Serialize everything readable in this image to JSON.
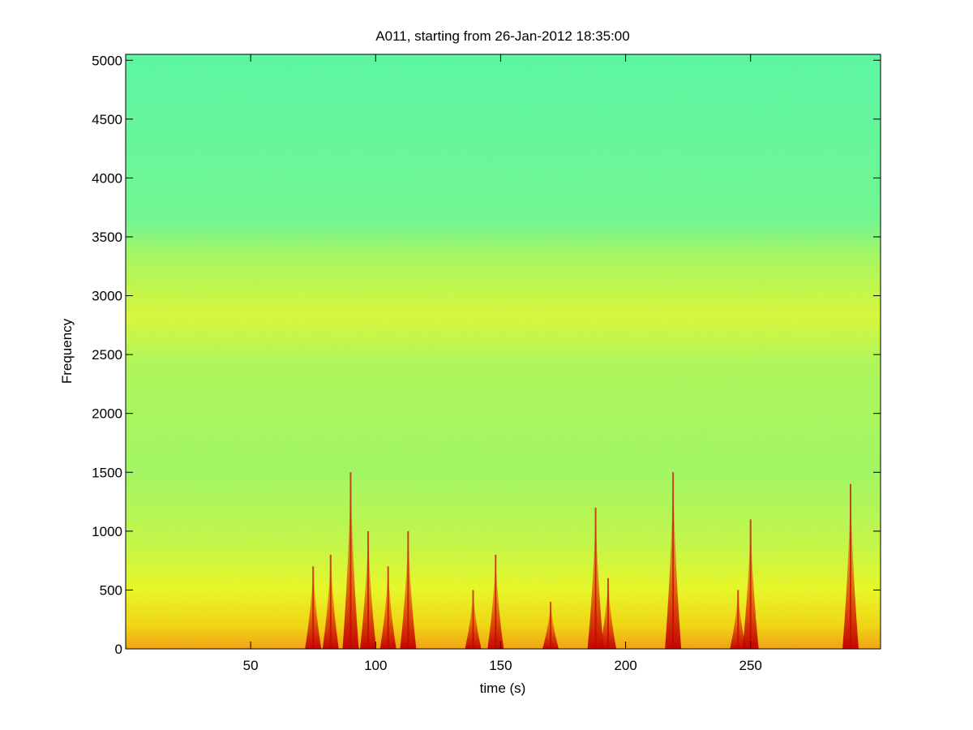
{
  "chart_data": {
    "type": "spectrogram",
    "title": "A011, starting from 26-Jan-2012 18:35:00",
    "x_label": "time (s)",
    "y_label": "Frequency",
    "xlim": [
      0,
      302
    ],
    "ylim": [
      0,
      5050
    ],
    "xticks": [
      50,
      100,
      150,
      200,
      250
    ],
    "yticks": [
      0,
      500,
      1000,
      1500,
      2000,
      2500,
      3000,
      3500,
      4000,
      4500,
      5000
    ],
    "series": [
      {
        "color": "#c80000",
        "x": [
          75,
          82,
          90,
          97,
          105,
          113,
          139,
          148,
          170,
          188,
          193,
          219,
          245,
          250,
          290
        ],
        "values": [
          700,
          800,
          1500,
          1000,
          700,
          1000,
          500,
          800,
          400,
          1200,
          600,
          1500,
          500,
          1100,
          1400
        ]
      }
    ]
  }
}
